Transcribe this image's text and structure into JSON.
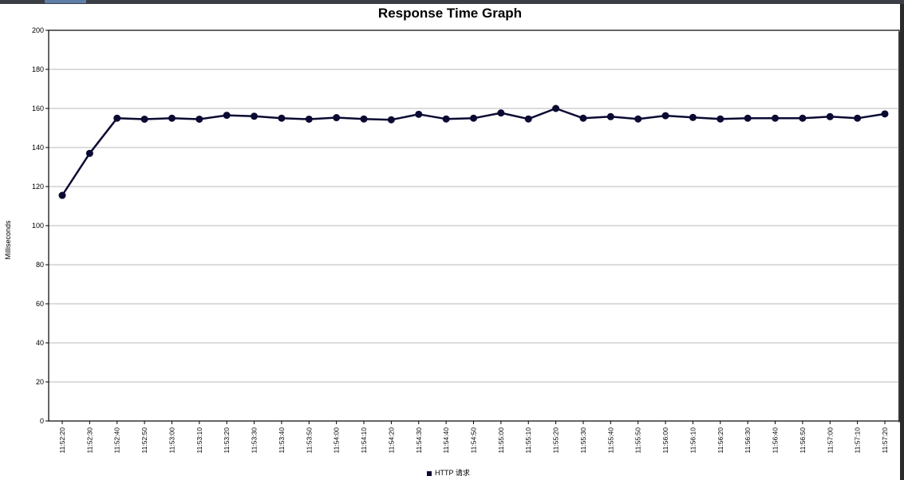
{
  "chart_data": {
    "type": "line",
    "title": "Response Time Graph",
    "xlabel": "",
    "ylabel": "Milliseconds",
    "ylim": [
      0,
      200
    ],
    "yticks": [
      0,
      20,
      40,
      60,
      80,
      100,
      120,
      140,
      160,
      180,
      200
    ],
    "grid": true,
    "legend_position": "bottom",
    "categories": [
      "11:52:20",
      "11:52:30",
      "11:52:40",
      "11:52:50",
      "11:53:00",
      "11:53:10",
      "11:53:20",
      "11:53:30",
      "11:53:40",
      "11:53:50",
      "11:54:00",
      "11:54:10",
      "11:54:20",
      "11:54:30",
      "11:54:40",
      "11:54:50",
      "11:55:00",
      "11:55:10",
      "11:55:20",
      "11:55:30",
      "11:55:40",
      "11:55:50",
      "11:56:00",
      "11:56:10",
      "11:56:20",
      "11:56:30",
      "11:56:40",
      "11:56:50",
      "11:57:00",
      "11:57:10",
      "11:57:20"
    ],
    "series": [
      {
        "name": "HTTP 请求",
        "color": "#0b0a33",
        "values": [
          115.5,
          137,
          155,
          154.5,
          155,
          154.5,
          156.5,
          156,
          155,
          154.5,
          155.3,
          154.6,
          154.2,
          157,
          154.6,
          155,
          157.7,
          154.6,
          160,
          155,
          155.8,
          154.6,
          156.3,
          155.4,
          154.6,
          155,
          155,
          155,
          155.8,
          155,
          157.2
        ]
      }
    ]
  }
}
